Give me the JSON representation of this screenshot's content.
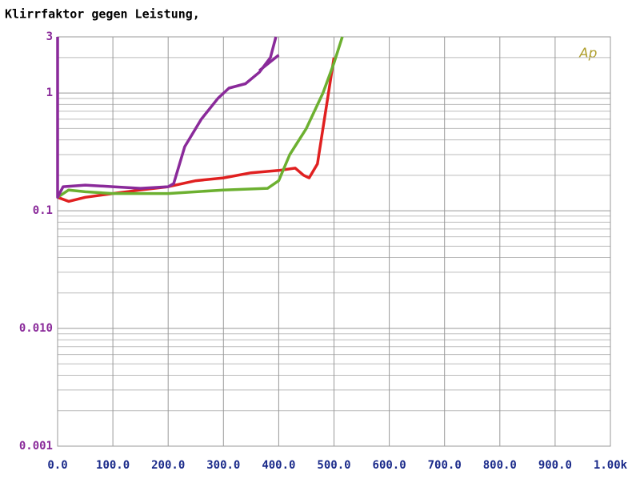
{
  "chart_data": {
    "type": "line",
    "title": "Klirrfaktor gegen Leistung,",
    "annotation": "Ap",
    "log_y": true,
    "grid": true,
    "xlim": [
      0,
      1000
    ],
    "ylim": [
      0.001,
      3
    ],
    "xticks": [
      {
        "value": 0,
        "label": "0.0"
      },
      {
        "value": 100,
        "label": "100.0"
      },
      {
        "value": 200,
        "label": "200.0"
      },
      {
        "value": 300,
        "label": "300.0"
      },
      {
        "value": 400,
        "label": "400.0"
      },
      {
        "value": 500,
        "label": "500.0"
      },
      {
        "value": 600,
        "label": "600.0"
      },
      {
        "value": 700,
        "label": "700.0"
      },
      {
        "value": 800,
        "label": "800.0"
      },
      {
        "value": 900,
        "label": "900.0"
      },
      {
        "value": 1000,
        "label": "1.00k"
      }
    ],
    "yticks": [
      0.001,
      {
        "value": 0.01,
        "label": "0.010"
      },
      0.1,
      1,
      3
    ],
    "series": [
      {
        "color": "#e02020",
        "x": [
          0,
          20,
          50,
          100,
          150,
          200,
          250,
          300,
          350,
          400,
          430,
          445,
          455,
          470,
          480,
          500
        ],
        "values": [
          0.13,
          0.12,
          0.13,
          0.14,
          0.15,
          0.16,
          0.18,
          0.19,
          0.21,
          0.22,
          0.23,
          0.2,
          0.19,
          0.25,
          0.5,
          2.0
        ]
      },
      {
        "color": "#6cb030",
        "x": [
          0,
          20,
          50,
          100,
          200,
          300,
          380,
          400,
          420,
          450,
          480,
          500,
          515
        ],
        "values": [
          0.13,
          0.15,
          0.145,
          0.14,
          0.14,
          0.15,
          0.155,
          0.18,
          0.3,
          0.5,
          1.0,
          1.8,
          3
        ]
      },
      {
        "color": "#8a2a9a",
        "x": [
          0,
          0,
          10,
          50,
          100,
          150,
          200,
          210,
          230,
          260,
          290,
          310,
          340,
          365,
          385,
          395
        ],
        "values": [
          3,
          0.13,
          0.16,
          0.165,
          0.16,
          0.155,
          0.16,
          0.17,
          0.35,
          0.6,
          0.9,
          1.1,
          1.2,
          1.5,
          2.0,
          3
        ]
      },
      {
        "color": "#8a2a9a",
        "x": [
          365,
          400
        ],
        "values": [
          1.55,
          2.1
        ]
      }
    ]
  }
}
